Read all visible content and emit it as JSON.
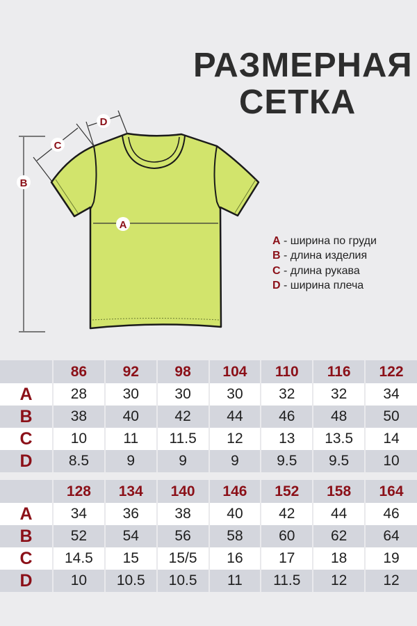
{
  "title": {
    "line1": "РАЗМЕРНАЯ",
    "line2": "СЕТКА"
  },
  "colors": {
    "accent": "#8b1018",
    "shirt": "#d2e46c",
    "row_gray": "#d4d6dd"
  },
  "diagram_labels": {
    "a": "A",
    "b": "B",
    "c": "C",
    "d": "D"
  },
  "legend": [
    {
      "key": "A",
      "text": " - ширина по груди"
    },
    {
      "key": "B",
      "text": " - длина изделия"
    },
    {
      "key": "C",
      "text": " - длина рукава"
    },
    {
      "key": "D",
      "text": " - ширина плеча"
    }
  ],
  "tables": [
    {
      "sizes": [
        "86",
        "92",
        "98",
        "104",
        "110",
        "116",
        "122"
      ],
      "rows": [
        {
          "label": "A",
          "values": [
            "28",
            "30",
            "30",
            "30",
            "32",
            "32",
            "34"
          ]
        },
        {
          "label": "B",
          "values": [
            "38",
            "40",
            "42",
            "44",
            "46",
            "48",
            "50"
          ]
        },
        {
          "label": "C",
          "values": [
            "10",
            "11",
            "11.5",
            "12",
            "13",
            "13.5",
            "14"
          ]
        },
        {
          "label": "D",
          "values": [
            "8.5",
            "9",
            "9",
            "9",
            "9.5",
            "9.5",
            "10"
          ]
        }
      ]
    },
    {
      "sizes": [
        "128",
        "134",
        "140",
        "146",
        "152",
        "158",
        "164"
      ],
      "rows": [
        {
          "label": "A",
          "values": [
            "34",
            "36",
            "38",
            "40",
            "42",
            "44",
            "46"
          ]
        },
        {
          "label": "B",
          "values": [
            "52",
            "54",
            "56",
            "58",
            "60",
            "62",
            "64"
          ]
        },
        {
          "label": "C",
          "values": [
            "14.5",
            "15",
            "15/5",
            "16",
            "17",
            "18",
            "19"
          ]
        },
        {
          "label": "D",
          "values": [
            "10",
            "10.5",
            "10.5",
            "11",
            "11.5",
            "12",
            "12"
          ]
        }
      ]
    }
  ]
}
